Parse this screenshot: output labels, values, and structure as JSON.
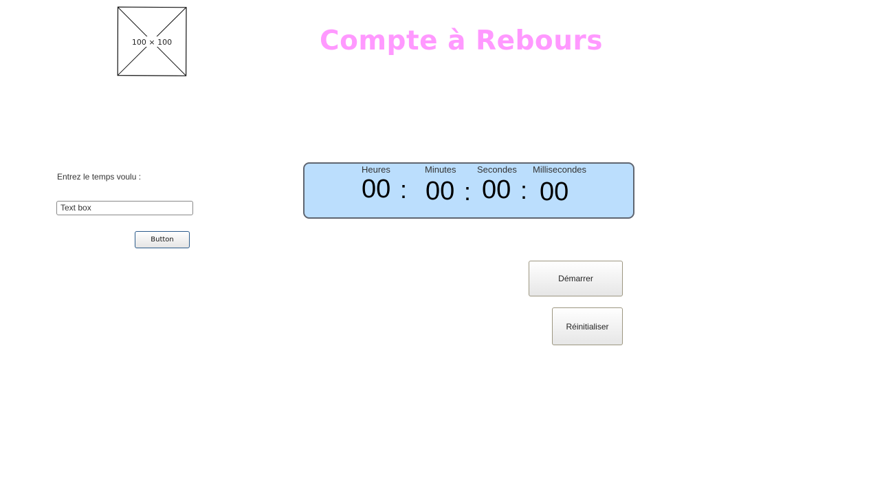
{
  "header": {
    "image_placeholder_label": "100 × 100",
    "title": "Compte à Rebours",
    "title_color": "#ff99ff"
  },
  "input_panel": {
    "label": "Entrez le temps voulu :",
    "text_box_value": "Text box",
    "button_label": "Button"
  },
  "timer": {
    "background_color": "#bbdefd",
    "units": [
      {
        "label": "Heures",
        "value": "00"
      },
      {
        "label": "Minutes",
        "value": "00"
      },
      {
        "label": "Secondes",
        "value": "00"
      },
      {
        "label": "Millisecondes",
        "value": "00"
      }
    ],
    "separator": ":"
  },
  "controls": {
    "start_label": "Démarrer",
    "reset_label": "Réinitialiser"
  }
}
